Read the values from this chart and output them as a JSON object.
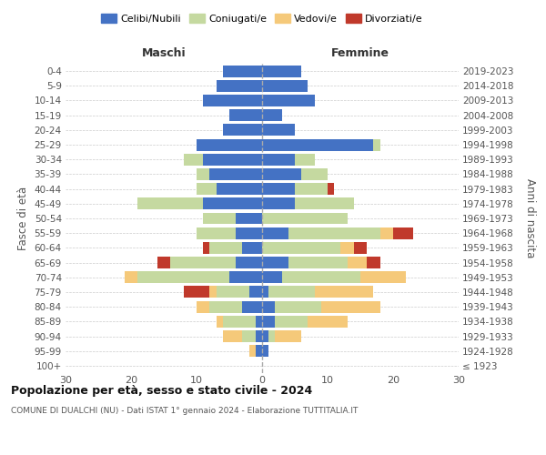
{
  "age_groups": [
    "100+",
    "95-99",
    "90-94",
    "85-89",
    "80-84",
    "75-79",
    "70-74",
    "65-69",
    "60-64",
    "55-59",
    "50-54",
    "45-49",
    "40-44",
    "35-39",
    "30-34",
    "25-29",
    "20-24",
    "15-19",
    "10-14",
    "5-9",
    "0-4"
  ],
  "birth_years": [
    "≤ 1923",
    "1924-1928",
    "1929-1933",
    "1934-1938",
    "1939-1943",
    "1944-1948",
    "1949-1953",
    "1954-1958",
    "1959-1963",
    "1964-1968",
    "1969-1973",
    "1974-1978",
    "1979-1983",
    "1984-1988",
    "1989-1993",
    "1994-1998",
    "1999-2003",
    "2004-2008",
    "2009-2013",
    "2014-2018",
    "2019-2023"
  ],
  "colors": {
    "celibi": "#4472c4",
    "coniugati": "#c5d9a0",
    "vedovi": "#f5c97a",
    "divorziati": "#c0392b"
  },
  "maschi": {
    "celibi": [
      0,
      1,
      1,
      1,
      3,
      2,
      5,
      4,
      3,
      4,
      4,
      9,
      7,
      8,
      9,
      10,
      6,
      5,
      9,
      7,
      6
    ],
    "coniugati": [
      0,
      0,
      2,
      5,
      5,
      5,
      14,
      10,
      5,
      6,
      5,
      10,
      3,
      2,
      3,
      0,
      0,
      0,
      0,
      0,
      0
    ],
    "vedovi": [
      0,
      1,
      3,
      1,
      2,
      1,
      2,
      0,
      0,
      0,
      0,
      0,
      0,
      0,
      0,
      0,
      0,
      0,
      0,
      0,
      0
    ],
    "divorziati": [
      0,
      0,
      0,
      0,
      0,
      4,
      0,
      2,
      1,
      0,
      0,
      0,
      0,
      0,
      0,
      0,
      0,
      0,
      0,
      0,
      0
    ]
  },
  "femmine": {
    "celibi": [
      0,
      1,
      1,
      2,
      2,
      1,
      3,
      4,
      0,
      4,
      0,
      5,
      5,
      6,
      5,
      17,
      5,
      3,
      8,
      7,
      6
    ],
    "coniugati": [
      0,
      0,
      1,
      5,
      7,
      7,
      12,
      9,
      12,
      14,
      13,
      9,
      5,
      4,
      3,
      1,
      0,
      0,
      0,
      0,
      0
    ],
    "vedovi": [
      0,
      0,
      4,
      6,
      9,
      9,
      7,
      3,
      2,
      2,
      0,
      0,
      0,
      0,
      0,
      0,
      0,
      0,
      0,
      0,
      0
    ],
    "divorziati": [
      0,
      0,
      0,
      0,
      0,
      0,
      0,
      2,
      2,
      3,
      0,
      0,
      1,
      0,
      0,
      0,
      0,
      0,
      0,
      0,
      0
    ]
  },
  "xlim": 30,
  "title": "Popolazione per età, sesso e stato civile - 2024",
  "subtitle": "COMUNE DI DUALCHI (NU) - Dati ISTAT 1° gennaio 2024 - Elaborazione TUTTITALIA.IT",
  "ylabel_left": "Fasce di età",
  "ylabel_right": "Anni di nascita",
  "xlabel_left": "Maschi",
  "xlabel_right": "Femmine",
  "legend_labels": [
    "Celibi/Nubili",
    "Coniugati/e",
    "Vedovi/e",
    "Divorziati/e"
  ],
  "background_color": "#ffffff",
  "grid_color": "#cccccc"
}
